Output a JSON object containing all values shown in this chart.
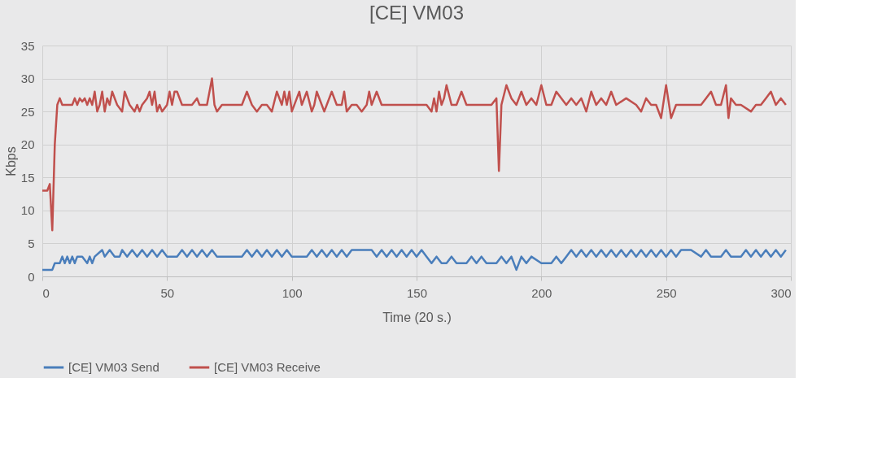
{
  "chart_data": {
    "type": "line",
    "title": "[CE] VM03",
    "xlabel": "Time (20 s.)",
    "ylabel": "Kbps",
    "xlim": [
      0,
      300
    ],
    "xticks": [
      0,
      50,
      100,
      150,
      200,
      250,
      300
    ],
    "ylim": [
      0,
      35
    ],
    "yticks": [
      0,
      5,
      10,
      15,
      20,
      25,
      30,
      35
    ],
    "grid": true,
    "legend": "bottom",
    "marker": "none",
    "line_style": "solid",
    "series": [
      {
        "name": "[CE] VM03 Send",
        "color": "#4a7ebb",
        "x": [
          0,
          4,
          5,
          7,
          8,
          9,
          10,
          11,
          12,
          13,
          14,
          16,
          18,
          19,
          20,
          21,
          24,
          25,
          27,
          29,
          31,
          32,
          34,
          36,
          38,
          40,
          42,
          44,
          46,
          48,
          50,
          52,
          54,
          56,
          58,
          60,
          62,
          64,
          66,
          68,
          70,
          72,
          74,
          80,
          82,
          84,
          86,
          88,
          90,
          92,
          94,
          96,
          98,
          100,
          102,
          104,
          106,
          108,
          110,
          112,
          114,
          116,
          118,
          120,
          122,
          124,
          126,
          128,
          130,
          132,
          134,
          136,
          138,
          140,
          142,
          144,
          146,
          148,
          150,
          152,
          154,
          156,
          158,
          160,
          162,
          164,
          166,
          170,
          172,
          174,
          176,
          178,
          180,
          182,
          184,
          186,
          188,
          190,
          192,
          194,
          196,
          200,
          202,
          204,
          206,
          208,
          210,
          212,
          214,
          216,
          218,
          220,
          222,
          224,
          226,
          228,
          230,
          232,
          234,
          236,
          238,
          240,
          242,
          244,
          246,
          248,
          250,
          252,
          254,
          256,
          258,
          260,
          264,
          266,
          268,
          270,
          272,
          274,
          276,
          278,
          280,
          282,
          284,
          286,
          288,
          290,
          292,
          294,
          296,
          298
        ],
        "values": [
          1,
          1,
          2,
          2,
          3,
          2,
          3,
          2,
          3,
          2,
          3,
          3,
          2,
          3,
          2,
          3,
          4,
          3,
          4,
          3,
          3,
          4,
          3,
          4,
          3,
          4,
          3,
          4,
          3,
          4,
          3,
          3,
          3,
          4,
          3,
          4,
          3,
          4,
          3,
          4,
          3,
          3,
          3,
          3,
          4,
          3,
          4,
          3,
          4,
          3,
          4,
          3,
          4,
          3,
          3,
          3,
          3,
          4,
          3,
          4,
          3,
          4,
          3,
          4,
          3,
          4,
          4,
          4,
          4,
          4,
          3,
          4,
          3,
          4,
          3,
          4,
          3,
          4,
          3,
          4,
          3,
          2,
          3,
          2,
          2,
          3,
          2,
          2,
          3,
          2,
          3,
          2,
          2,
          2,
          3,
          2,
          3,
          1,
          3,
          2,
          3,
          2,
          2,
          2,
          3,
          2,
          3,
          4,
          3,
          4,
          3,
          4,
          3,
          4,
          3,
          4,
          3,
          4,
          3,
          4,
          3,
          4,
          3,
          4,
          3,
          4,
          3,
          4,
          3,
          4,
          4,
          4,
          3,
          4,
          3,
          3,
          3,
          4,
          3,
          3,
          3,
          4,
          3,
          4,
          3,
          4,
          3,
          4,
          3,
          4
        ]
      },
      {
        "name": "[CE] VM03 Receive",
        "color": "#c0504d",
        "x": [
          0,
          2,
          3,
          4,
          5,
          6,
          7,
          8,
          12,
          13,
          14,
          15,
          16,
          17,
          18,
          19,
          20,
          21,
          22,
          23,
          24,
          25,
          26,
          27,
          28,
          30,
          32,
          33,
          35,
          37,
          38,
          39,
          40,
          42,
          43,
          44,
          45,
          46,
          47,
          48,
          50,
          51,
          52,
          53,
          54,
          56,
          60,
          62,
          63,
          64,
          66,
          68,
          69,
          70,
          72,
          74,
          80,
          82,
          84,
          86,
          88,
          90,
          92,
          94,
          96,
          97,
          98,
          99,
          100,
          102,
          103,
          104,
          106,
          108,
          109,
          110,
          112,
          113,
          114,
          116,
          118,
          120,
          121,
          122,
          124,
          126,
          128,
          130,
          131,
          132,
          134,
          136,
          140,
          150,
          154,
          156,
          157,
          158,
          159,
          160,
          161,
          162,
          164,
          166,
          168,
          170,
          172,
          174,
          180,
          182,
          183,
          184,
          186,
          188,
          190,
          192,
          194,
          196,
          198,
          200,
          202,
          204,
          206,
          210,
          212,
          214,
          216,
          218,
          220,
          222,
          224,
          226,
          228,
          230,
          234,
          238,
          240,
          242,
          244,
          246,
          248,
          250,
          252,
          254,
          256,
          260,
          264,
          266,
          268,
          270,
          272,
          274,
          275,
          276,
          278,
          280,
          284,
          286,
          288,
          290,
          292,
          294,
          296,
          298
        ],
        "values": [
          13,
          13,
          14,
          7,
          20,
          26,
          27,
          26,
          26,
          27,
          26,
          27,
          26.5,
          27,
          26,
          27,
          26,
          28,
          25,
          26,
          28,
          25,
          27,
          26,
          28,
          26,
          25,
          28,
          26,
          25,
          26,
          25,
          26,
          27,
          28,
          26,
          28,
          25,
          26,
          25,
          26,
          28,
          26,
          28,
          28,
          26,
          26,
          27,
          26,
          26,
          26,
          30,
          26,
          25,
          26,
          26,
          26,
          28,
          26,
          25,
          26,
          26,
          25,
          28,
          26,
          28,
          26,
          28,
          25,
          27,
          28,
          26,
          28,
          25,
          26,
          28,
          26,
          25,
          26,
          28,
          26,
          26,
          28,
          25,
          26,
          26,
          25,
          26,
          28,
          26,
          28,
          26,
          26,
          26,
          26,
          25,
          27,
          25,
          28,
          26,
          27,
          29,
          26,
          26,
          28,
          26,
          26,
          26,
          26,
          27,
          16,
          26,
          29,
          27,
          26,
          28,
          26,
          27,
          26,
          29,
          26,
          26,
          28,
          26,
          27,
          26,
          27,
          25,
          28,
          26,
          27,
          26,
          28,
          26,
          27,
          26,
          25,
          27,
          26,
          26,
          24,
          29,
          24,
          26,
          26,
          26,
          26,
          27,
          28,
          26,
          26,
          29,
          24,
          27,
          26,
          26,
          25,
          26,
          26,
          27,
          28,
          26,
          27,
          26
        ]
      }
    ]
  }
}
